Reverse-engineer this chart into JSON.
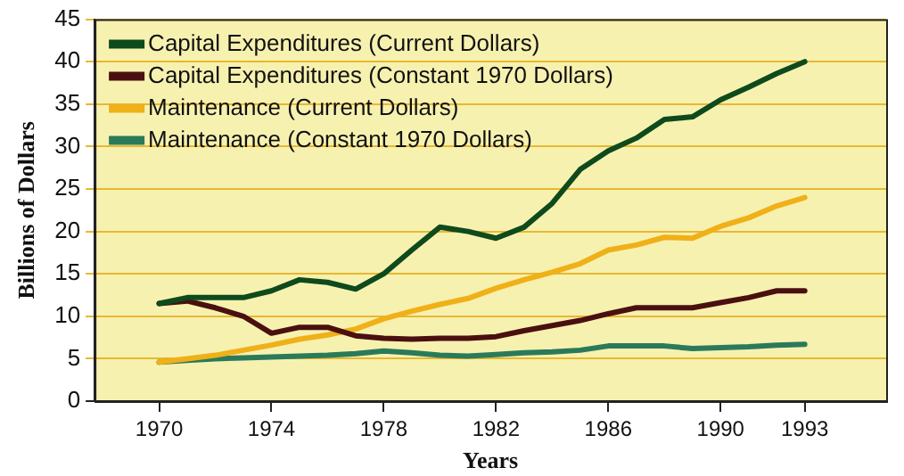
{
  "chart_data": {
    "type": "line",
    "xlabel": "Years",
    "ylabel": "Billions of Dollars",
    "x": [
      1970,
      1971,
      1972,
      1973,
      1974,
      1975,
      1976,
      1977,
      1978,
      1979,
      1980,
      1981,
      1982,
      1983,
      1984,
      1985,
      1986,
      1987,
      1988,
      1989,
      1990,
      1991,
      1992,
      1993
    ],
    "series": [
      {
        "name": "Capital Expenditures (Current Dollars)",
        "color": "#0e4a1c",
        "values": [
          11.5,
          12.2,
          12.2,
          12.2,
          13,
          14.3,
          14,
          13.2,
          15,
          17.8,
          20.5,
          20,
          19.2,
          20.5,
          23.3,
          27.3,
          29.5,
          31,
          33.2,
          33.5,
          35.5,
          37,
          38.6,
          40
        ]
      },
      {
        "name": "Capital Expenditures (Constant 1970 Dollars)",
        "color": "#4a1010",
        "values": [
          11.5,
          11.8,
          11,
          10,
          8,
          8.7,
          8.7,
          7.7,
          7.4,
          7.3,
          7.4,
          7.4,
          7.6,
          8.3,
          8.9,
          9.5,
          10.3,
          11,
          11,
          11,
          11.6,
          12.2,
          13,
          13
        ]
      },
      {
        "name": "Maintenance (Current Dollars)",
        "color": "#f0b018",
        "values": [
          4.6,
          5,
          5.4,
          6,
          6.6,
          7.3,
          7.8,
          8.5,
          9.7,
          10.6,
          11.4,
          12.1,
          13.3,
          14.3,
          15.2,
          16.2,
          17.8,
          18.4,
          19.3,
          19.2,
          20.6,
          21.6,
          23,
          24
        ]
      },
      {
        "name": "Maintenance (Constant 1970 Dollars)",
        "color": "#2a7a5a",
        "values": [
          4.6,
          4.8,
          5,
          5.1,
          5.2,
          5.3,
          5.4,
          5.6,
          5.9,
          5.7,
          5.4,
          5.3,
          5.5,
          5.7,
          5.8,
          6,
          6.5,
          6.5,
          6.5,
          6.2,
          6.3,
          6.4,
          6.6,
          6.7
        ]
      }
    ],
    "xlim": [
      1967.7,
      1995.9
    ],
    "xticks": [
      1970,
      1974,
      1978,
      1982,
      1986,
      1990,
      1993
    ],
    "ylim": [
      0,
      45
    ],
    "yticks": [
      0,
      5,
      10,
      15,
      20,
      25,
      30,
      35,
      40,
      45
    ],
    "grid": "y",
    "legend": "top left",
    "marker": "none",
    "line_style": "solid"
  }
}
